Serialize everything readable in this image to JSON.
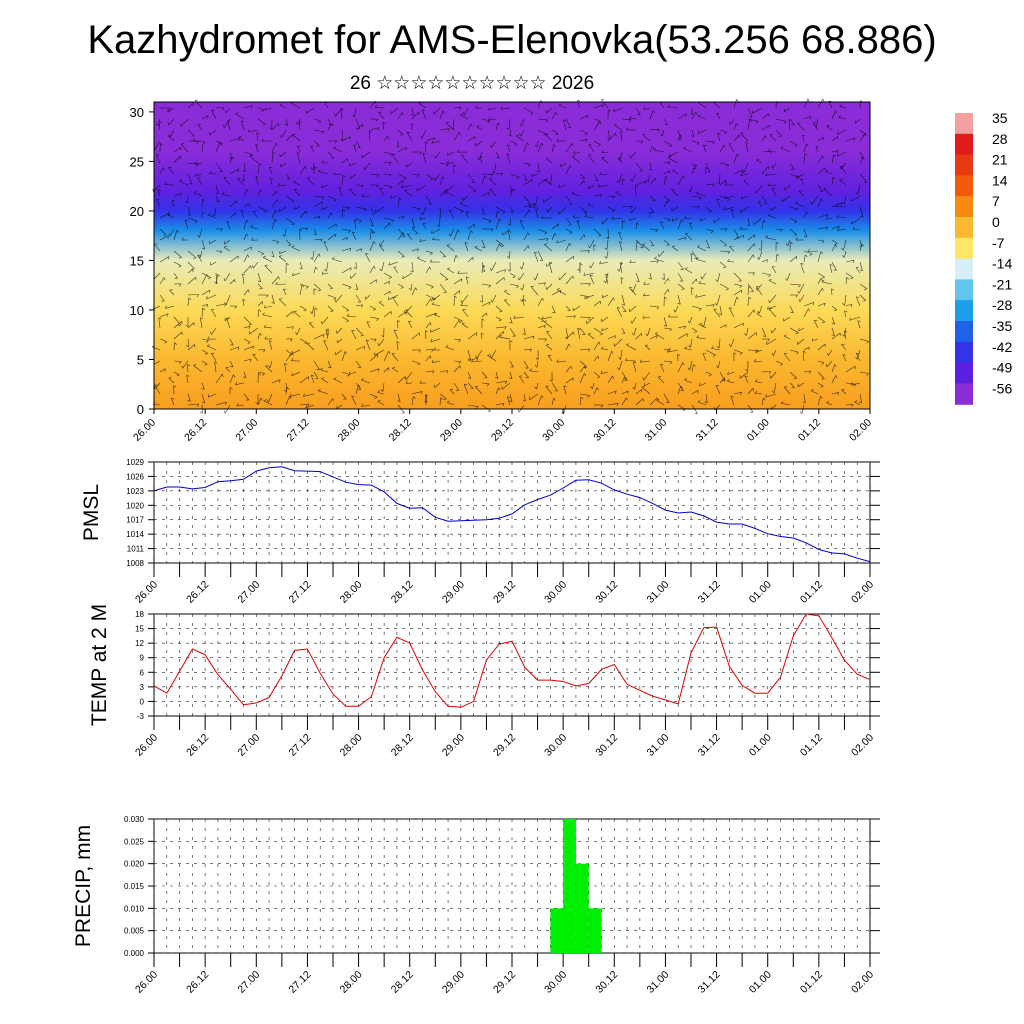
{
  "title": "Kazhydromet for AMS-Elenovka(53.256 68.886)",
  "subtitle": "26 ☆☆☆☆☆☆☆☆☆☆ 2026",
  "colors": {
    "pmsl_line": "#0000cc",
    "temp_line": "#dd0000",
    "precip_bar": "#00ee00"
  },
  "chart_data": [
    {
      "type": "heatmap",
      "name": "vertical_cross_section",
      "title": "",
      "x_tick_labels": [
        "26.00",
        "26.12",
        "27.00",
        "27.12",
        "28.00",
        "28.12",
        "29.00",
        "29.12",
        "30.00",
        "30.12",
        "31.00",
        "31.12",
        "01.00",
        "01.12",
        "02.00"
      ],
      "y_ticks": [
        0,
        5,
        10,
        15,
        20,
        25,
        30
      ],
      "ylim": [
        0,
        31
      ],
      "colorbar_labels": [
        "35",
        "28",
        "21",
        "14",
        "7",
        "0",
        "-7",
        "-14",
        "-21",
        "-28",
        "-35",
        "-42",
        "-49",
        "-56"
      ],
      "colorbar_colors": [
        "#f2a0a0",
        "#e21a1a",
        "#e83a10",
        "#f05a0a",
        "#f58a10",
        "#fbb830",
        "#fde766",
        "#d8eff8",
        "#60c6ee",
        "#1a9fe8",
        "#1f62e8",
        "#3333e8",
        "#5a1fe0",
        "#8a2cd8"
      ],
      "levels": [
        {
          "height": 0,
          "value": 4
        },
        {
          "height": 5,
          "value": 0
        },
        {
          "height": 10,
          "value": -5
        },
        {
          "height": 15,
          "value": -11
        },
        {
          "height": 18,
          "value": -30
        },
        {
          "height": 20,
          "value": -42
        },
        {
          "height": 22,
          "value": -50
        },
        {
          "height": 26,
          "value": -56
        },
        {
          "height": 31,
          "value": -58
        }
      ]
    },
    {
      "type": "line",
      "name": "pmsl",
      "ylabel": "PMSL",
      "ylim": [
        1008,
        1029
      ],
      "y_ticks": [
        1008,
        1011,
        1014,
        1017,
        1020,
        1023,
        1026,
        1029
      ],
      "x_tick_labels": [
        "26.00",
        "26.12",
        "27.00",
        "27.12",
        "28.00",
        "28.12",
        "29.00",
        "29.12",
        "30.00",
        "30.12",
        "31.00",
        "31.12",
        "01.00",
        "01.12",
        "02.00"
      ],
      "x": [
        0,
        3,
        6,
        9,
        12,
        15,
        18,
        21,
        24,
        27,
        30,
        33,
        36,
        39,
        42,
        45,
        48,
        51,
        54,
        57,
        60,
        63,
        66,
        69,
        72,
        75,
        78,
        81,
        84,
        87,
        90,
        93,
        96,
        99,
        102,
        105,
        108,
        111,
        114,
        117,
        120,
        123,
        126,
        129,
        132,
        135,
        138,
        141,
        144,
        147,
        150,
        153,
        156,
        159,
        162,
        165,
        168
      ],
      "values": [
        1023,
        1023.8,
        1023.8,
        1023.4,
        1023.7,
        1024.9,
        1025.1,
        1025.4,
        1027.1,
        1027.8,
        1028,
        1027.2,
        1027.1,
        1027,
        1025.9,
        1024.8,
        1024.3,
        1024.2,
        1022.8,
        1020.4,
        1019.4,
        1019.5,
        1017.5,
        1016.7,
        1016.8,
        1016.9,
        1017,
        1017.3,
        1018.2,
        1020.1,
        1021.2,
        1022.1,
        1023.6,
        1025.2,
        1025.3,
        1024.6,
        1023.2,
        1022.3,
        1021.6,
        1020.4,
        1019,
        1018.4,
        1018.6,
        1017.8,
        1016.5,
        1016.1,
        1016.1,
        1015.2,
        1014.1,
        1013.5,
        1013.2,
        1012.2,
        1010.8,
        1010.1,
        1009.9,
        1009,
        1008.3
      ]
    },
    {
      "type": "line",
      "name": "temp_2m",
      "ylabel": "TEMP at 2 M",
      "ylim": [
        -3,
        18
      ],
      "y_ticks": [
        -3,
        0,
        3,
        6,
        9,
        12,
        15,
        18
      ],
      "x_tick_labels": [
        "26.00",
        "26.12",
        "27.00",
        "27.12",
        "28.00",
        "28.12",
        "29.00",
        "29.12",
        "30.00",
        "30.12",
        "31.00",
        "31.12",
        "01.00",
        "01.12",
        "02.00"
      ],
      "x": [
        0,
        3,
        6,
        9,
        12,
        15,
        18,
        21,
        24,
        27,
        30,
        33,
        36,
        39,
        42,
        45,
        48,
        51,
        54,
        57,
        60,
        63,
        66,
        69,
        72,
        75,
        78,
        81,
        84,
        87,
        90,
        93,
        96,
        99,
        102,
        105,
        108,
        111,
        114,
        117,
        120,
        123,
        126,
        129,
        132,
        135,
        138,
        141,
        144,
        147,
        150,
        153,
        156,
        159,
        162,
        165,
        168
      ],
      "values": [
        3.2,
        1.7,
        6.2,
        10.8,
        9.6,
        5.5,
        2.5,
        -0.7,
        -0.3,
        0.8,
        5.3,
        10.5,
        10.8,
        5.8,
        1.5,
        -1,
        -1,
        1,
        9,
        13.2,
        12,
        6.5,
        2,
        -1,
        -1.2,
        0,
        8.5,
        11.8,
        12.4,
        7,
        4.4,
        4.4,
        4.1,
        3.2,
        3.7,
        6.6,
        7.6,
        3.5,
        2.3,
        1.1,
        0.3,
        -0.5,
        10,
        15.2,
        15.3,
        7.2,
        3.3,
        1.7,
        1.7,
        5,
        13.5,
        18,
        17.6,
        13.2,
        8.5,
        5.6,
        4.5
      ]
    },
    {
      "type": "bar",
      "name": "precip",
      "ylabel": "PRECIP, mm",
      "ylim": [
        0,
        0.03
      ],
      "y_tick_labels": [
        "0.000",
        "0.005",
        "0.010",
        "0.015",
        "0.020",
        "0.025",
        "0.030"
      ],
      "x_tick_labels": [
        "26.00",
        "26.12",
        "27.00",
        "27.12",
        "28.00",
        "28.12",
        "29.00",
        "29.12",
        "30.00",
        "30.12",
        "31.00",
        "31.12",
        "01.00",
        "01.12",
        "02.00"
      ],
      "bars": [
        {
          "start": 93,
          "end": 96,
          "value": 0.01
        },
        {
          "start": 96,
          "end": 99,
          "value": 0.03
        },
        {
          "start": 99,
          "end": 102,
          "value": 0.02
        },
        {
          "start": 102,
          "end": 105,
          "value": 0.01
        }
      ]
    }
  ]
}
